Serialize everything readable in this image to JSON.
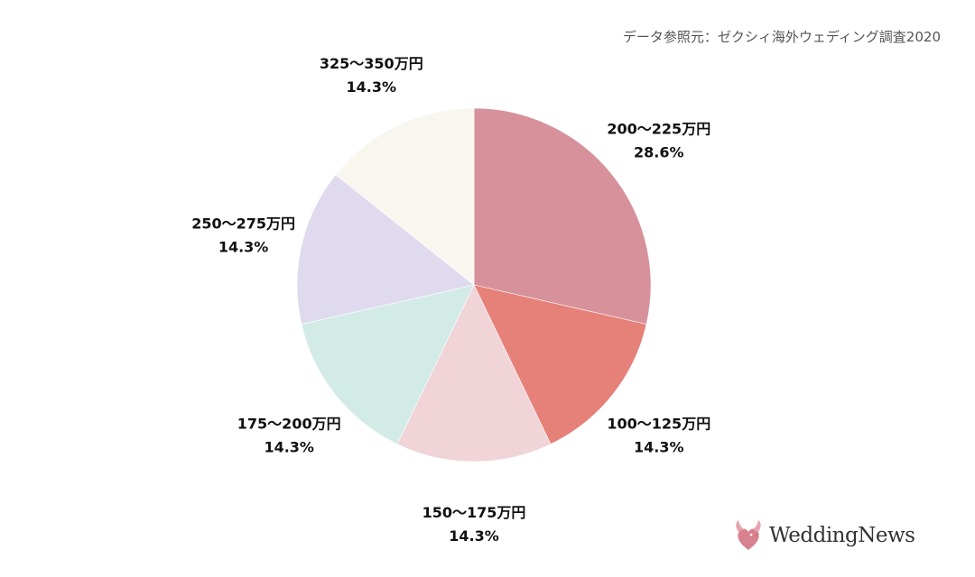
{
  "source_note": "データ参照元：ゼクシィ海外ウェディング調査2020",
  "brand": {
    "name": "WeddingNews",
    "icon": "dove-icon",
    "color": "#d9828f"
  },
  "chart_data": {
    "type": "pie",
    "title": "",
    "unit": "%",
    "slices": [
      {
        "label": "200〜225万円",
        "value": 28.6,
        "value_label": "28.6%",
        "color": "#d6919b"
      },
      {
        "label": "100〜125万円",
        "value": 14.3,
        "value_label": "14.3%",
        "color": "#e6817a"
      },
      {
        "label": "150〜175万円",
        "value": 14.3,
        "value_label": "14.3%",
        "color": "#f0d4d8"
      },
      {
        "label": "175〜200万円",
        "value": 14.3,
        "value_label": "14.3%",
        "color": "#d3ebe7"
      },
      {
        "label": "250〜275万円",
        "value": 14.3,
        "value_label": "14.3%",
        "color": "#e0daee"
      },
      {
        "label": "325〜350万円",
        "value": 14.3,
        "value_label": "14.3%",
        "color": "#f8f6ef"
      }
    ],
    "start_angle": "12 o'clock",
    "direction": "clockwise",
    "legend": "none"
  }
}
